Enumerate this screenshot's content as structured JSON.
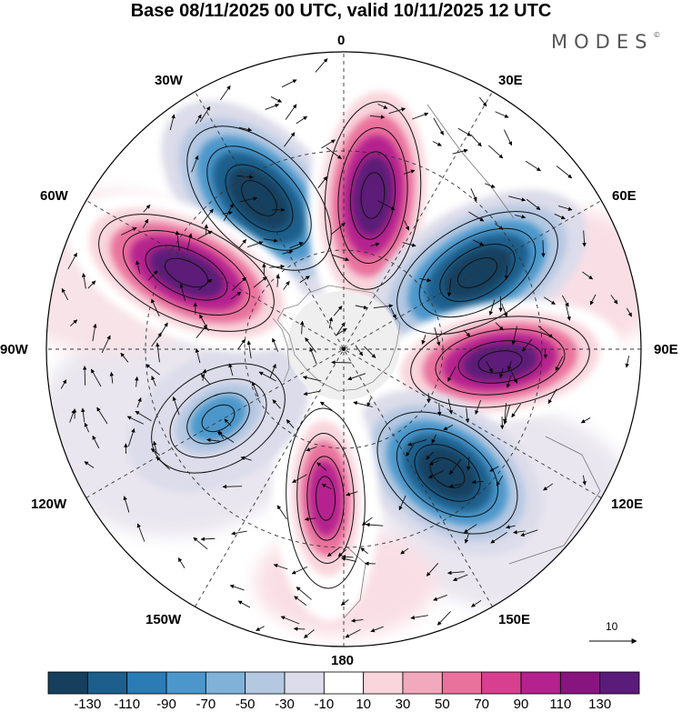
{
  "title": "Base 08/11/2025 00 UTC, valid 10/11/2025 12 UTC",
  "brand": "MODES",
  "brand_mark": "©",
  "longitude_labels": {
    "n0": "0",
    "n30e": "30E",
    "n60e": "60E",
    "n90e": "90E",
    "n120e": "120E",
    "n150e": "150E",
    "n180": "180",
    "n150w": "150W",
    "n120w": "120W",
    "n90w": "90W",
    "n60w": "60W",
    "n30w": "30W"
  },
  "vector_scale_label": "10",
  "colorbar": {
    "labels": [
      "-130",
      "-110",
      "-90",
      "-70",
      "-50",
      "-30",
      "-10",
      "10",
      "30",
      "50",
      "70",
      "90",
      "110",
      "130"
    ],
    "colors": [
      "#163f5e",
      "#1c5f8c",
      "#2b7bb5",
      "#4b97cb",
      "#7fb1d9",
      "#b5c8e2",
      "#dcdcea",
      "#ffffff",
      "#f9d5dc",
      "#f3a9bd",
      "#e9729d",
      "#d93f8f",
      "#b5218e",
      "#88157f",
      "#5b1b78"
    ]
  },
  "features": {
    "vortices": [
      {
        "sign": "negative",
        "rank": 1
      },
      {
        "sign": "positive",
        "rank": 2
      },
      {
        "sign": "negative",
        "rank": 3
      },
      {
        "sign": "positive",
        "rank": 4
      },
      {
        "sign": "negative",
        "rank": 5
      },
      {
        "sign": "positive",
        "rank": 6
      },
      {
        "sign": "negative",
        "rank": 7
      },
      {
        "sign": "positive",
        "rank": 8
      }
    ]
  }
}
